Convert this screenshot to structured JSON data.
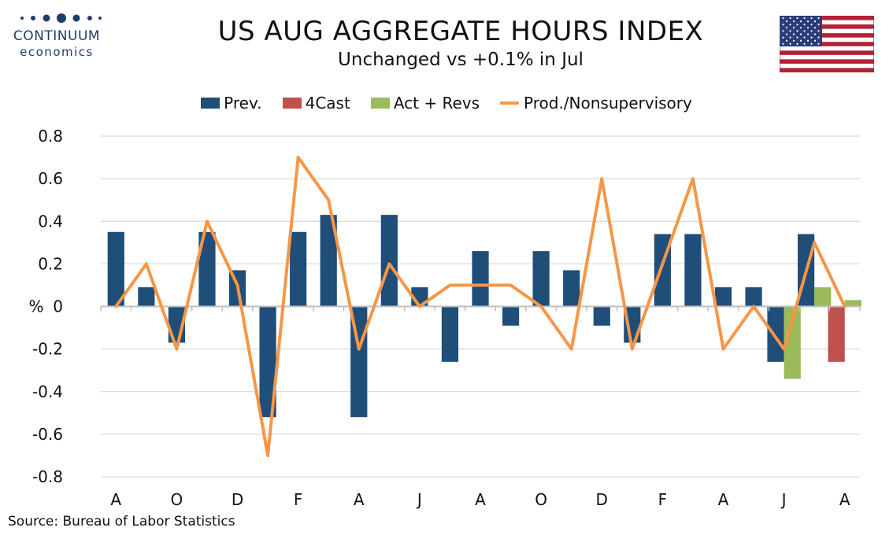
{
  "header": {
    "title": "US AUG AGGREGATE HOURS INDEX",
    "subtitle": "Unchanged vs +0.1% in Jul"
  },
  "logo": {
    "line1": "CONTINUUM",
    "line2": "economics",
    "color": "#1f3d6b"
  },
  "flag": {
    "name": "us-flag-icon"
  },
  "footer": {
    "source": "Source: Bureau of Labor Statistics"
  },
  "chart_data": {
    "type": "bar",
    "ylabel": "%",
    "ylim": [
      -0.8,
      0.8
    ],
    "yticks": [
      0.8,
      0.6,
      0.4,
      0.2,
      0,
      -0.2,
      -0.4,
      -0.6,
      -0.8
    ],
    "grid": true,
    "legend_position": "top",
    "x_tick_labels": [
      "A",
      "O",
      "D",
      "F",
      "A",
      "J",
      "A",
      "O",
      "D",
      "F",
      "A",
      "J",
      "A"
    ],
    "x_tick_every": 2,
    "colors": {
      "prev": "#1f4e79",
      "forecast": "#c0504d",
      "actual": "#9bbb59",
      "line": "#f79646"
    },
    "series": [
      {
        "name": "Prev.",
        "kind": "bar",
        "values": [
          0.35,
          0.09,
          -0.17,
          0.35,
          0.17,
          -0.52,
          0.35,
          0.43,
          -0.52,
          0.43,
          0.09,
          -0.26,
          0.26,
          -0.09,
          0.26,
          0.17,
          -0.09,
          -0.17,
          0.34,
          0.34,
          0.09,
          0.09,
          -0.26,
          0.34,
          null
        ]
      },
      {
        "name": "4Cast",
        "kind": "bar",
        "values": [
          null,
          null,
          null,
          null,
          null,
          null,
          null,
          null,
          null,
          null,
          null,
          null,
          null,
          null,
          null,
          null,
          null,
          null,
          null,
          null,
          null,
          null,
          null,
          null,
          -0.26
        ]
      },
      {
        "name": "Act + Revs",
        "kind": "bar",
        "values": [
          null,
          null,
          null,
          null,
          null,
          null,
          null,
          null,
          null,
          null,
          null,
          null,
          null,
          null,
          null,
          null,
          null,
          null,
          null,
          null,
          null,
          null,
          -0.34,
          0.09,
          0.03
        ]
      },
      {
        "name": "Prod./Nonsupervisory",
        "kind": "line",
        "values": [
          0.0,
          0.2,
          -0.2,
          0.4,
          0.1,
          -0.7,
          0.7,
          0.5,
          -0.2,
          0.2,
          0.0,
          0.1,
          0.1,
          0.1,
          0.0,
          -0.2,
          0.6,
          -0.2,
          0.2,
          0.6,
          -0.2,
          0.0,
          -0.2,
          0.3,
          0.0
        ]
      }
    ]
  }
}
